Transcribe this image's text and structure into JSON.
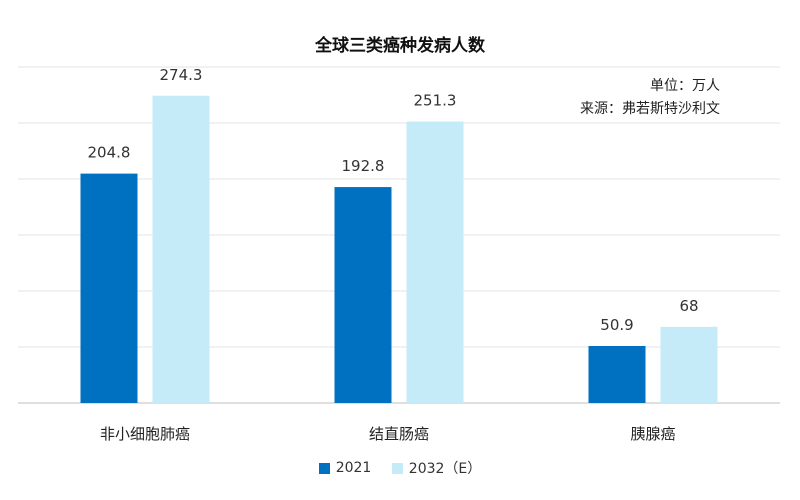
{
  "chart_data": {
    "type": "bar",
    "title": "全球三类癌种发病人数",
    "unit_note": "单位：万人",
    "source_note": "来源：弗若斯特沙利文",
    "categories": [
      "非小细胞肺癌",
      "结直肠癌",
      "胰腺癌"
    ],
    "series": [
      {
        "name": "2021",
        "values": [
          204.8,
          192.8,
          50.9
        ],
        "color": "#0070c0"
      },
      {
        "name": "2032（E）",
        "values": [
          274.3,
          251.3,
          68
        ],
        "color": "#c6ebf8"
      }
    ],
    "ylim": [
      0,
      300
    ],
    "grid": true,
    "legend_position": "bottom",
    "xlabel": "",
    "ylabel": ""
  }
}
